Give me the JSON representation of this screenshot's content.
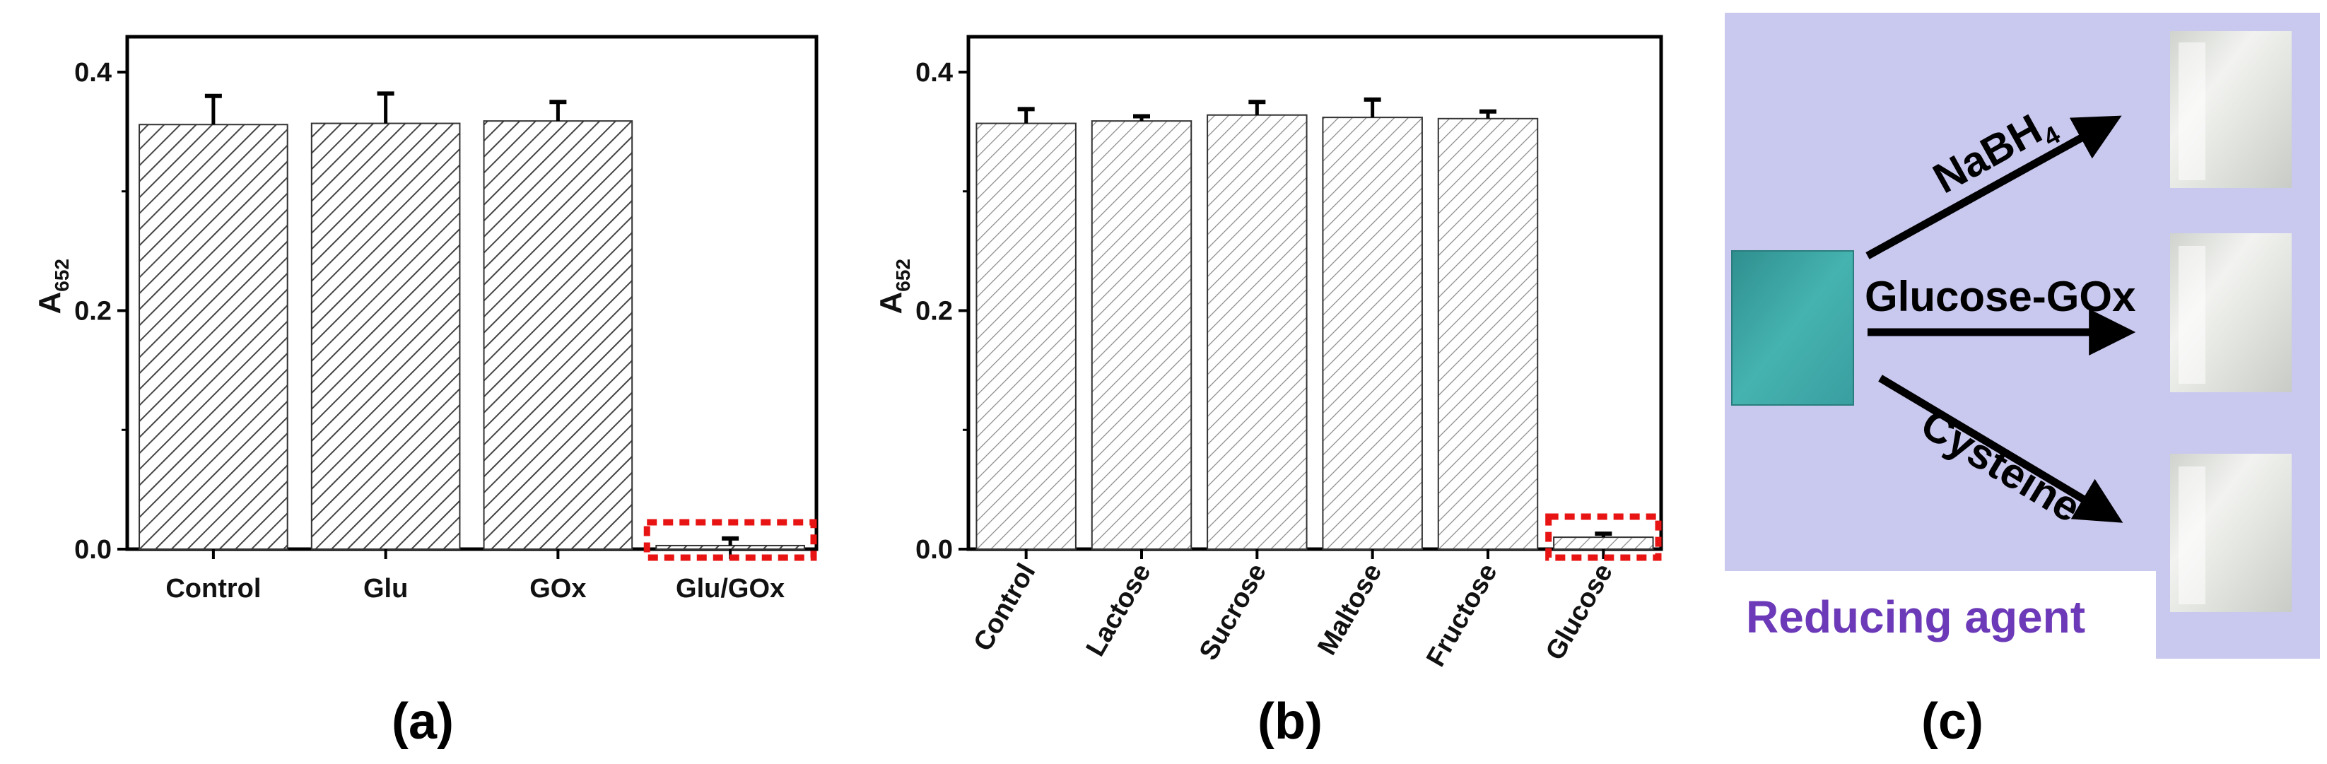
{
  "colors": {
    "axis": "#000000",
    "bar_stroke": "#333333",
    "hatch_dark": "#444444",
    "hatch_light": "#8a8a8a",
    "error": "#000000",
    "highlight": "#e81414",
    "panel_c_bg": "#c9c8ef",
    "reducing_text": "#6c3ab8",
    "vial_blue": "#3aa8a8",
    "vial_clear": "#e6e8e4"
  },
  "chart_data": [
    {
      "type": "bar",
      "panel": "(a)",
      "ylabel": "A",
      "ylabel_sub": "652",
      "xlabel": "",
      "ylim": [
        0,
        0.4
      ],
      "yticks": [
        "0.0",
        "0.2",
        "0.4"
      ],
      "categories": [
        "Control",
        "Glu",
        "GOx",
        "Glu/GOx"
      ],
      "values": [
        0.356,
        0.357,
        0.359,
        0.003
      ],
      "errors": [
        0.024,
        0.025,
        0.016,
        0.006
      ],
      "highlight_category": "Glu/GOx",
      "grid": false,
      "legend": "none"
    },
    {
      "type": "bar",
      "panel": "(b)",
      "ylabel": "A",
      "ylabel_sub": "652",
      "xlabel": "",
      "ylim": [
        0,
        0.4
      ],
      "yticks": [
        "0.0",
        "0.2",
        "0.4"
      ],
      "categories": [
        "Control",
        "Lactose",
        "Sucrose",
        "Maltose",
        "Fructose",
        "Glucose"
      ],
      "values": [
        0.357,
        0.359,
        0.364,
        0.362,
        0.361,
        0.01
      ],
      "errors": [
        0.012,
        0.004,
        0.011,
        0.015,
        0.006,
        0.003
      ],
      "highlight_category": "Glucose",
      "grid": false,
      "legend": "none"
    }
  ],
  "panel_c": {
    "label": "(c)",
    "arrows": [
      {
        "label": "NaBH",
        "sub": "4"
      },
      {
        "label": "Glucose-GOx",
        "sub": ""
      },
      {
        "label": "Cysteine",
        "sub": ""
      }
    ],
    "caption": "Reducing agent"
  }
}
